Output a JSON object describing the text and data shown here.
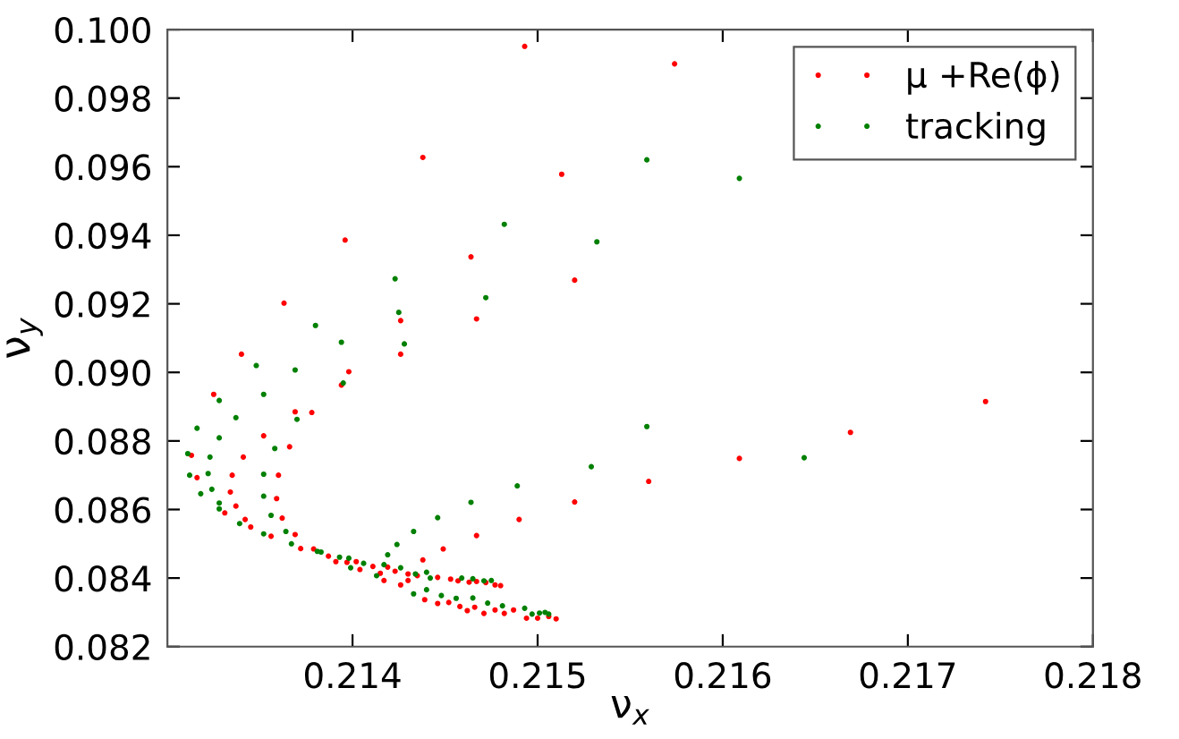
{
  "chart_data": {
    "type": "scatter",
    "xlabel": "ν$_{x}$",
    "ylabel": "ν$_{y}$",
    "xlim": [
      0.213,
      0.218
    ],
    "ylim": [
      0.082,
      0.1
    ],
    "xticks": [
      0.214,
      0.215,
      0.216,
      0.217,
      0.218
    ],
    "yticks": [
      {
        "value": 0.082,
        "label": "0.082"
      },
      {
        "value": 0.084,
        "label": "0.084"
      },
      {
        "value": 0.086,
        "label": "0.086"
      },
      {
        "value": 0.088,
        "label": "0.088"
      },
      {
        "value": 0.09,
        "label": "0.090"
      },
      {
        "value": 0.092,
        "label": "0.092"
      },
      {
        "value": 0.094,
        "label": "0.094"
      },
      {
        "value": 0.096,
        "label": "0.096"
      },
      {
        "value": 0.098,
        "label": "0.098"
      },
      {
        "value": 0.1,
        "label": "0.100"
      }
    ],
    "grid": false,
    "legend": "top right",
    "marker": "circle",
    "series": [
      {
        "name": "μ +Re(ϕ)",
        "color": "#ff0000",
        "x": [
          0.21493,
          0.21574,
          0.21438,
          0.21513,
          0.21396,
          0.21464,
          0.2152,
          0.21363,
          0.21426,
          0.21467,
          0.2134,
          0.21426,
          0.21398,
          0.21394,
          0.21325,
          0.21369,
          0.21378,
          0.21352,
          0.21366,
          0.21313,
          0.21341,
          0.21316,
          0.21335,
          0.2136,
          0.2156,
          0.21334,
          0.21359,
          0.2152,
          0.21337,
          0.21362,
          0.2149,
          0.21331,
          0.21342,
          0.21345,
          0.21467,
          0.21356,
          0.21369,
          0.21372,
          0.21379,
          0.21449,
          0.21387,
          0.21391,
          0.21397,
          0.21402,
          0.21438,
          0.21404,
          0.21411,
          0.21415,
          0.21419,
          0.21417,
          0.2143,
          0.21423,
          0.21426,
          0.2143,
          0.21435,
          0.21446,
          0.21453,
          0.21457,
          0.21463,
          0.21467,
          0.21472,
          0.21477,
          0.2148,
          0.21439,
          0.21446,
          0.21452,
          0.21458,
          0.21462,
          0.21466,
          0.21471,
          0.21477,
          0.21482,
          0.21487,
          0.21494,
          0.215,
          0.21506,
          0.2151,
          0.21609,
          0.21669,
          0.21742
        ],
        "values": [
          0.09951,
          0.099,
          0.09627,
          0.09578,
          0.09386,
          0.09337,
          0.09269,
          0.09202,
          0.09151,
          0.09156,
          0.09053,
          0.09053,
          0.09002,
          0.08963,
          0.08936,
          0.08885,
          0.08883,
          0.08815,
          0.08783,
          0.08758,
          0.08753,
          0.08693,
          0.087,
          0.087,
          0.08682,
          0.08651,
          0.08632,
          0.08622,
          0.0861,
          0.08575,
          0.08571,
          0.0859,
          0.08571,
          0.08549,
          0.08524,
          0.08522,
          0.08527,
          0.08486,
          0.08485,
          0.08485,
          0.08464,
          0.08448,
          0.08446,
          0.08448,
          0.08453,
          0.08425,
          0.08434,
          0.08414,
          0.08432,
          0.08393,
          0.08393,
          0.0842,
          0.0838,
          0.08412,
          0.08407,
          0.08402,
          0.08397,
          0.08392,
          0.08388,
          0.0839,
          0.08387,
          0.0838,
          0.08378,
          0.08337,
          0.08326,
          0.08329,
          0.08317,
          0.08305,
          0.08315,
          0.08297,
          0.08307,
          0.08297,
          0.08307,
          0.08283,
          0.08283,
          0.08288,
          0.08281,
          0.08749,
          0.08825,
          0.08915
        ]
      },
      {
        "name": "tracking",
        "color": "#008000",
        "x": [
          0.21559,
          0.21482,
          0.21532,
          0.21423,
          0.21472,
          0.21425,
          0.2138,
          0.21394,
          0.21428,
          0.21609,
          0.21348,
          0.21369,
          0.21395,
          0.21352,
          0.21328,
          0.21337,
          0.2137,
          0.21316,
          0.21328,
          0.21358,
          0.21311,
          0.21323,
          0.21352,
          0.21312,
          0.21322,
          0.21559,
          0.21529,
          0.21489,
          0.21464,
          0.21352,
          0.21318,
          0.21324,
          0.21328,
          0.21328,
          0.21356,
          0.21446,
          0.21339,
          0.21433,
          0.21352,
          0.21364,
          0.21367,
          0.21424,
          0.21381,
          0.21383,
          0.21393,
          0.21398,
          0.21419,
          0.21399,
          0.21406,
          0.21413,
          0.21417,
          0.21426,
          0.21434,
          0.2144,
          0.21442,
          0.21459,
          0.21465,
          0.21471,
          0.21475,
          0.21433,
          0.2144,
          0.21448,
          0.21456,
          0.21465,
          0.21473,
          0.21481,
          0.21493,
          0.21497,
          0.21501,
          0.21504,
          0.21506,
          0.21644
        ],
        "values": [
          0.0962,
          0.09432,
          0.09381,
          0.09273,
          0.09218,
          0.09175,
          0.09137,
          0.09088,
          0.09083,
          0.09566,
          0.0902,
          0.09007,
          0.08969,
          0.08936,
          0.08918,
          0.08868,
          0.08863,
          0.08837,
          0.08809,
          0.08778,
          0.08763,
          0.08753,
          0.08703,
          0.087,
          0.08705,
          0.08842,
          0.08725,
          0.08669,
          0.08621,
          0.08639,
          0.08646,
          0.08659,
          0.08619,
          0.08602,
          0.08583,
          0.08576,
          0.08559,
          0.08536,
          0.08529,
          0.08536,
          0.085,
          0.08498,
          0.08478,
          0.08476,
          0.08461,
          0.08458,
          0.08468,
          0.0843,
          0.08443,
          0.08407,
          0.08439,
          0.0843,
          0.08412,
          0.08417,
          0.084,
          0.084,
          0.08398,
          0.08392,
          0.08393,
          0.08354,
          0.08366,
          0.08349,
          0.08341,
          0.08342,
          0.08327,
          0.08319,
          0.08312,
          0.08295,
          0.08298,
          0.083,
          0.08295,
          0.08751
        ]
      }
    ]
  }
}
